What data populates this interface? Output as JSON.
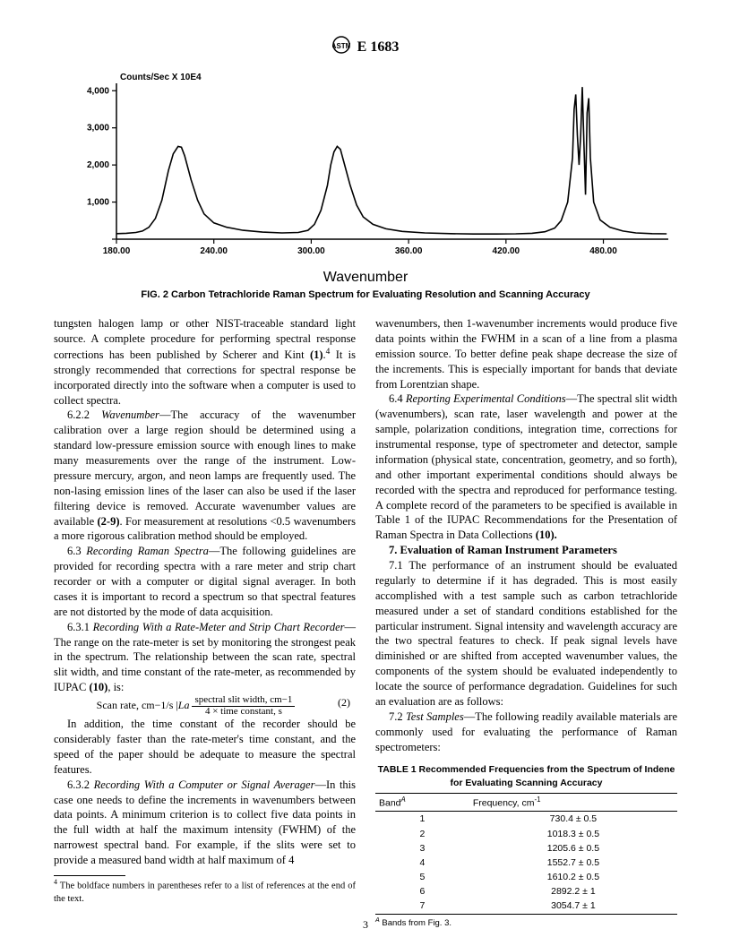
{
  "header": {
    "designation": "E 1683"
  },
  "figure": {
    "ylabel": "Counts/Sec  X 10E4",
    "yticks": [
      {
        "y": 0,
        "label": ""
      },
      {
        "y": 1000,
        "label": "1,000"
      },
      {
        "y": 2000,
        "label": "2,000"
      },
      {
        "y": 3000,
        "label": "3,000"
      },
      {
        "y": 4000,
        "label": "4,000"
      }
    ],
    "ylim": [
      0,
      4200
    ],
    "xlim": [
      180,
      520
    ],
    "xticks": [
      {
        "x": 180,
        "label": "180.00"
      },
      {
        "x": 240,
        "label": "240.00"
      },
      {
        "x": 300,
        "label": "300.00"
      },
      {
        "x": 360,
        "label": "360.00"
      },
      {
        "x": 420,
        "label": "420.00"
      },
      {
        "x": 480,
        "label": "480.00"
      }
    ],
    "trace_points": [
      [
        180,
        150
      ],
      [
        186,
        160
      ],
      [
        192,
        180
      ],
      [
        196,
        220
      ],
      [
        200,
        320
      ],
      [
        204,
        560
      ],
      [
        208,
        1050
      ],
      [
        212,
        1850
      ],
      [
        215,
        2300
      ],
      [
        218,
        2500
      ],
      [
        220,
        2480
      ],
      [
        222,
        2250
      ],
      [
        226,
        1600
      ],
      [
        230,
        1050
      ],
      [
        234,
        680
      ],
      [
        240,
        440
      ],
      [
        248,
        320
      ],
      [
        258,
        240
      ],
      [
        270,
        190
      ],
      [
        282,
        170
      ],
      [
        292,
        180
      ],
      [
        298,
        240
      ],
      [
        302,
        400
      ],
      [
        306,
        780
      ],
      [
        310,
        1450
      ],
      [
        312,
        2000
      ],
      [
        314,
        2350
      ],
      [
        316,
        2500
      ],
      [
        318,
        2420
      ],
      [
        320,
        2100
      ],
      [
        324,
        1450
      ],
      [
        328,
        920
      ],
      [
        332,
        600
      ],
      [
        338,
        400
      ],
      [
        346,
        280
      ],
      [
        356,
        210
      ],
      [
        370,
        170
      ],
      [
        386,
        150
      ],
      [
        400,
        140
      ],
      [
        414,
        140
      ],
      [
        426,
        145
      ],
      [
        436,
        160
      ],
      [
        444,
        200
      ],
      [
        450,
        300
      ],
      [
        454,
        500
      ],
      [
        458,
        1000
      ],
      [
        461,
        2200
      ],
      [
        462,
        3500
      ],
      [
        463,
        3900
      ],
      [
        464,
        2800
      ],
      [
        465,
        2000
      ],
      [
        466,
        2800
      ],
      [
        467,
        4100
      ],
      [
        468,
        2600
      ],
      [
        469,
        1200
      ],
      [
        470,
        3400
      ],
      [
        471,
        3800
      ],
      [
        472,
        2200
      ],
      [
        474,
        1000
      ],
      [
        478,
        520
      ],
      [
        484,
        320
      ],
      [
        492,
        220
      ],
      [
        500,
        170
      ],
      [
        510,
        150
      ],
      [
        519,
        145
      ]
    ],
    "xlabel": "Wavenumber",
    "caption": "FIG. 2 Carbon Tetrachloride Raman Spectrum for Evaluating Resolution and Scanning Accuracy",
    "stroke_color": "#000000",
    "axis_color": "#000000",
    "font_family": "Arial, Helvetica, sans-serif",
    "tick_fontsize": 10
  },
  "body": {
    "p_tungsten": "tungsten halogen lamp or other NIST-traceable standard light source. A complete procedure for performing spectral response corrections has been published by Scherer and Kint ",
    "ref_1": "(1)",
    "fnote_mark": "4",
    "p_tungsten_tail": " It is strongly recommended that corrections for spectral response be incorporated directly into the software when a computer is used to collect spectra.",
    "p_622_head": "6.2.2 ",
    "p_622_em": "Wavenumber",
    "p_622": "—The accuracy of the wavenumber calibration over a large region should be determined using a standard low-pressure emission source with enough lines to make many measurements over the range of the instrument. Low-pressure mercury, argon, and neon lamps are frequently used. The non-lasing emission lines of the laser can also be used if the laser filtering device is removed. Accurate wavenumber values are available ",
    "ref_29": "(2-9)",
    "p_622_tail": ". For measurement at resolutions <0.5 wavenumbers a more rigorous calibration method should be employed.",
    "p_63_head": "6.3 ",
    "p_63_em": "Recording Raman Spectra",
    "p_63": "—The following guidelines are provided for recording spectra with a rare meter and strip chart recorder or with a computer or digital signal averager. In both cases it is important to record a spectrum so that spectral features are not distorted by the mode of data acquisition.",
    "p_631_head": "6.3.1 ",
    "p_631_em": "Recording With a Rate-Meter and Strip Chart Recorder",
    "p_631": "—The range on the rate-meter is set by monitoring the strongest peak in the spectrum. The relationship between the scan rate, spectral slit width, and time constant of the rate-meter, as recommended by IUPAC ",
    "ref_10": "(10)",
    "p_631_tail": ", is:",
    "eq_left": "Scan rate, cm−1/s |",
    "eq_La": "La",
    "eq_num_text": "spectral slit width, cm−1",
    "eq_den_text": "4 × time constant, s",
    "eq_number": "(2)",
    "p_631b": "In addition, the time constant of the recorder should be considerably faster than the rate-meter's time constant, and the speed of the paper should be adequate to measure the spectral features.",
    "p_632_head": "6.3.2 ",
    "p_632_em": "Recording With a Computer or Signal Averager",
    "p_632": "—In this case one needs to define the increments in wavenumbers between data points. A minimum criterion is to collect five data points in the full width at half the maximum intensity (FWHM) of the narrowest spectral band. For example, if the slits were set to provide a measured band width at half maximum of 4 ",
    "p_col2a": "wavenumbers, then 1-wavenumber increments would produce five data points within the FWHM in a scan of a line from a plasma emission source. To better define peak shape decrease the size of the increments. This is especially important for bands that deviate from Lorentzian shape.",
    "p_64_head": "6.4 ",
    "p_64_em": "Reporting Experimental Conditions",
    "p_64": "—The spectral slit width (wavenumbers), scan rate, laser wavelength and power at the sample, polarization conditions, integration time, corrections for instrumental response, type of spectrometer and detector, sample information (physical state, concentration, geometry, and so forth), and other important experimental conditions should always be recorded with the spectra and reproduced for performance testing. A complete record of the parameters to be specified is available in Table 1 of the IUPAC Recommendations for the Presentation of Raman Spectra in Data Collections ",
    "ref_10b": "(10).",
    "sec7": "7.  Evaluation of Raman Instrument Parameters",
    "p_71_head": "7.1 ",
    "p_71": "The performance of an instrument should be evaluated regularly to determine if it has degraded. This is most easily accomplished with a test sample such as carbon tetrachloride measured under a set of standard conditions established for the particular instrument. Signal intensity and wavelength accuracy are the two spectral features to check. If peak signal levels have diminished or are shifted from accepted wavenumber values, the components of the system should be evaluated independently to locate the source of performance degradation. Guidelines for such an evaluation are as follows:",
    "p_72_head": "7.2 ",
    "p_72_em": "Test Samples",
    "p_72": "—The following readily available materials are commonly used for evaluating the performance of Raman spectrometers:"
  },
  "footnote": {
    "mark": "4",
    "text": " The boldface numbers in parentheses refer to a list of references at the end of the text."
  },
  "table": {
    "title": "TABLE 1  Recommended Frequencies from the Spectrum of Indene for Evaluating Scanning Accuracy",
    "col1": "Band",
    "col1_sup": "A",
    "col2": "Frequency, cm",
    "col2_sup": "-1",
    "rows": [
      {
        "band": "1",
        "freq": "730.4 ± 0.5"
      },
      {
        "band": "2",
        "freq": "1018.3 ± 0.5"
      },
      {
        "band": "3",
        "freq": "1205.6 ± 0.5"
      },
      {
        "band": "4",
        "freq": "1552.7 ± 0.5"
      },
      {
        "band": "5",
        "freq": "1610.2 ± 0.5"
      },
      {
        "band": "6",
        "freq": "2892.2 ± 1"
      },
      {
        "band": "7",
        "freq": "3054.7 ± 1"
      }
    ],
    "footnote_sup": "A",
    "footnote_text": " Bands from Fig. 3."
  },
  "page_number": "3"
}
